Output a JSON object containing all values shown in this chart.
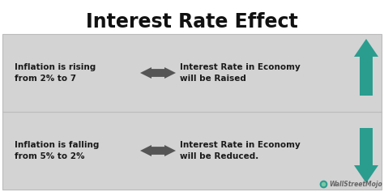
{
  "title": "Interest Rate Effect",
  "title_fontsize": 17,
  "title_fontweight": "bold",
  "bg_color": "#ffffff",
  "box_color": "#d3d3d3",
  "row1_left_text": "Inflation is rising\nfrom 2% to 7",
  "row2_left_text": "Inflation is falling\nfrom 5% to 2%",
  "row1_right_text": "Interest Rate in Economy\nwill be Raised",
  "row2_right_text": "Interest Rate in Economy\nwill be Reduced.",
  "text_color": "#1a1a1a",
  "arrow_color": "#2a9d8f",
  "double_arrow_color": "#555555",
  "watermark": "WallStreetMojo",
  "watermark_color": "#666666"
}
